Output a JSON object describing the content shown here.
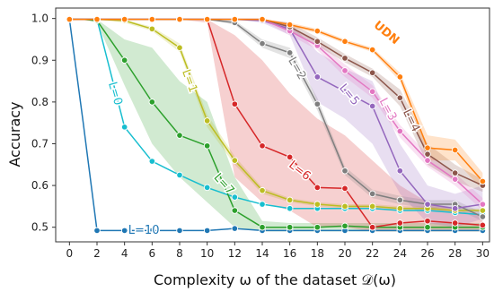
{
  "chart_data": {
    "type": "line",
    "xlabel": "Complexity ω of the dataset 𝒟(ω)",
    "ylabel": "Accuracy",
    "xlim": [
      -1,
      30.5
    ],
    "ylim": [
      0.465,
      1.025
    ],
    "xticks": [
      "0",
      "2",
      "4",
      "6",
      "8",
      "10",
      "12",
      "14",
      "16",
      "18",
      "20",
      "22",
      "24",
      "26",
      "28",
      "30"
    ],
    "yticks": [
      "0.5",
      "0.6",
      "0.7",
      "0.8",
      "0.9",
      "1.0"
    ],
    "grid": false,
    "x": [
      0,
      1,
      2,
      4,
      6,
      8,
      10,
      12,
      14,
      16,
      18,
      20,
      22,
      24,
      26,
      28,
      30
    ],
    "series": [
      {
        "name": "L=10",
        "label_text": "L=10",
        "color": "#1f77b4",
        "values": [
          0.998,
          0.75,
          0.492,
          0.492,
          0.492,
          0.492,
          0.492,
          0.497,
          0.492,
          0.492,
          0.492,
          0.492,
          0.492,
          0.492,
          0.492,
          0.492,
          0.492
        ],
        "band": null
      },
      {
        "name": "L=0",
        "label_text": "L=0",
        "color": "#17becf",
        "values": [
          0.998,
          0.998,
          0.998,
          0.74,
          0.658,
          0.625,
          0.595,
          0.572,
          0.555,
          0.545,
          0.545,
          0.545,
          0.545,
          0.54,
          0.54,
          0.535,
          0.53
        ],
        "band": null
      },
      {
        "name": "L=7",
        "label_text": "L=7",
        "color": "#2ca02c",
        "values": [
          0.998,
          0.998,
          0.995,
          0.9,
          0.8,
          0.72,
          0.695,
          0.54,
          0.5,
          0.5,
          0.5,
          0.503,
          0.5,
          0.5,
          0.5,
          0.5,
          0.5
        ],
        "band": {
          "lower": [
            0.998,
            0.998,
            0.99,
            0.84,
            0.7,
            0.62,
            0.56,
            0.5,
            0.49,
            0.49,
            0.49,
            0.49,
            0.49,
            0.49,
            0.49,
            0.49,
            0.49
          ],
          "upper": [
            0.998,
            0.998,
            0.998,
            0.95,
            0.93,
            0.85,
            0.8,
            0.62,
            0.515,
            0.51,
            0.51,
            0.51,
            0.51,
            0.51,
            0.51,
            0.51,
            0.51
          ]
        }
      },
      {
        "name": "L=1",
        "label_text": "L=1",
        "color": "#bcbd22",
        "values": [
          0.998,
          0.998,
          0.998,
          0.995,
          0.975,
          0.93,
          0.755,
          0.66,
          0.588,
          0.565,
          0.555,
          0.55,
          0.55,
          0.545,
          0.545,
          0.54,
          0.54
        ],
        "band": {
          "lower": [
            0.998,
            0.998,
            0.998,
            0.99,
            0.97,
            0.92,
            0.74,
            0.65,
            0.58,
            0.56,
            0.55,
            0.545,
            0.545,
            0.54,
            0.54,
            0.535,
            0.535
          ],
          "upper": [
            0.998,
            0.998,
            0.998,
            0.998,
            0.98,
            0.94,
            0.77,
            0.67,
            0.595,
            0.57,
            0.56,
            0.555,
            0.555,
            0.55,
            0.55,
            0.545,
            0.545
          ]
        }
      },
      {
        "name": "L=6",
        "label_text": "L=6",
        "color": "#d62728",
        "values": [
          0.998,
          0.998,
          0.998,
          0.998,
          0.998,
          0.998,
          0.998,
          0.795,
          0.695,
          0.668,
          0.595,
          0.593,
          0.5,
          0.51,
          0.515,
          0.51,
          0.505
        ],
        "band": {
          "lower": [
            0.998,
            0.998,
            0.998,
            0.998,
            0.998,
            0.998,
            0.99,
            0.62,
            0.56,
            0.54,
            0.5,
            0.5,
            0.49,
            0.49,
            0.49,
            0.49,
            0.49
          ],
          "upper": [
            0.998,
            0.998,
            0.998,
            0.998,
            0.998,
            0.998,
            0.998,
            0.96,
            0.9,
            0.82,
            0.76,
            0.72,
            0.66,
            0.6,
            0.56,
            0.54,
            0.53
          ]
        }
      },
      {
        "name": "L=2",
        "label_text": "L=2",
        "color": "#7f7f7f",
        "values": [
          0.998,
          0.998,
          0.998,
          0.998,
          0.998,
          0.998,
          0.998,
          0.99,
          0.94,
          0.918,
          0.795,
          0.635,
          0.58,
          0.565,
          0.555,
          0.555,
          0.525
        ],
        "band": {
          "lower": [
            0.998,
            0.998,
            0.998,
            0.998,
            0.998,
            0.998,
            0.998,
            0.985,
            0.93,
            0.905,
            0.78,
            0.625,
            0.57,
            0.555,
            0.545,
            0.545,
            0.515
          ],
          "upper": [
            0.998,
            0.998,
            0.998,
            0.998,
            0.998,
            0.998,
            0.998,
            0.995,
            0.95,
            0.93,
            0.81,
            0.645,
            0.59,
            0.575,
            0.565,
            0.565,
            0.535
          ]
        }
      },
      {
        "name": "L=5",
        "label_text": "L=5",
        "color": "#9467bd",
        "values": [
          0.998,
          0.998,
          0.998,
          0.998,
          0.998,
          0.998,
          0.998,
          0.998,
          0.995,
          0.975,
          0.86,
          0.825,
          0.79,
          0.635,
          0.555,
          0.545,
          0.555
        ],
        "band": {
          "lower": [
            0.998,
            0.998,
            0.998,
            0.998,
            0.998,
            0.998,
            0.998,
            0.998,
            0.99,
            0.96,
            0.8,
            0.76,
            0.7,
            0.58,
            0.51,
            0.5,
            0.52
          ],
          "upper": [
            0.998,
            0.998,
            0.998,
            0.998,
            0.998,
            0.998,
            0.998,
            0.998,
            0.998,
            0.99,
            0.92,
            0.88,
            0.85,
            0.7,
            0.6,
            0.58,
            0.6
          ]
        }
      },
      {
        "name": "L=3",
        "label_text": "L=3",
        "color": "#e377c2",
        "values": [
          0.998,
          0.998,
          0.998,
          0.998,
          0.998,
          0.998,
          0.998,
          0.998,
          0.998,
          0.97,
          0.935,
          0.875,
          0.825,
          0.73,
          0.66,
          0.615,
          0.555
        ],
        "band": {
          "lower": [
            0.998,
            0.998,
            0.998,
            0.998,
            0.998,
            0.998,
            0.998,
            0.998,
            0.995,
            0.96,
            0.925,
            0.86,
            0.81,
            0.715,
            0.645,
            0.6,
            0.54
          ],
          "upper": [
            0.998,
            0.998,
            0.998,
            0.998,
            0.998,
            0.998,
            0.998,
            0.998,
            0.998,
            0.98,
            0.945,
            0.89,
            0.84,
            0.745,
            0.675,
            0.63,
            0.57
          ]
        }
      },
      {
        "name": "L=4",
        "label_text": "L=4",
        "color": "#8c564b",
        "values": [
          0.998,
          0.998,
          0.998,
          0.998,
          0.998,
          0.998,
          0.998,
          0.998,
          0.998,
          0.98,
          0.945,
          0.905,
          0.87,
          0.81,
          0.675,
          0.63,
          0.6
        ],
        "band": {
          "lower": [
            0.998,
            0.998,
            0.998,
            0.998,
            0.998,
            0.998,
            0.998,
            0.998,
            0.995,
            0.97,
            0.935,
            0.895,
            0.86,
            0.79,
            0.65,
            0.61,
            0.585
          ],
          "upper": [
            0.998,
            0.998,
            0.998,
            0.998,
            0.998,
            0.998,
            0.998,
            0.998,
            0.998,
            0.99,
            0.955,
            0.915,
            0.88,
            0.83,
            0.7,
            0.65,
            0.615
          ]
        }
      },
      {
        "name": "UDN",
        "label_text": "UDN",
        "color": "#ff7f0e",
        "values": [
          0.998,
          0.998,
          0.998,
          0.998,
          0.998,
          0.998,
          0.998,
          0.998,
          0.998,
          0.985,
          0.97,
          0.945,
          0.925,
          0.86,
          0.69,
          0.685,
          0.61
        ],
        "band": {
          "lower": [
            0.998,
            0.998,
            0.998,
            0.998,
            0.998,
            0.998,
            0.998,
            0.998,
            0.998,
            0.98,
            0.965,
            0.94,
            0.92,
            0.85,
            0.66,
            0.66,
            0.59
          ],
          "upper": [
            0.998,
            0.998,
            0.998,
            0.998,
            0.998,
            0.998,
            0.998,
            0.998,
            0.998,
            0.99,
            0.975,
            0.95,
            0.93,
            0.87,
            0.72,
            0.71,
            0.63
          ]
        }
      }
    ]
  }
}
